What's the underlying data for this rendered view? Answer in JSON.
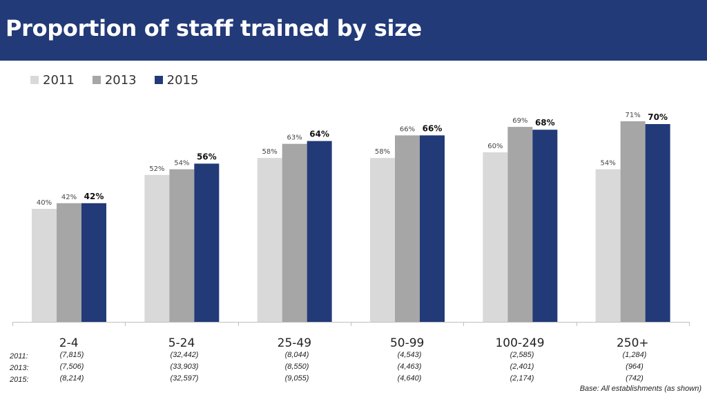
{
  "header": {
    "title": "Proportion of staff trained by size"
  },
  "colors": {
    "header_bg": "#223a78",
    "s2011": "#d9d9d9",
    "s2013": "#a6a6a6",
    "s2015": "#223a78"
  },
  "footnote": "Base: All establishments  (as shown)",
  "chart_data": {
    "type": "bar",
    "title": "Proportion of staff trained by size",
    "ylim": [
      0,
      100
    ],
    "grid": false,
    "legend_position": "top-left",
    "categories": [
      "2-4",
      "5-24",
      "25-49",
      "50-99",
      "100-249",
      "250+"
    ],
    "series": [
      {
        "name": "2011",
        "values": [
          40,
          52,
          58,
          58,
          60,
          54
        ],
        "labels": [
          "40%",
          "52%",
          "58%",
          "58%",
          "60%",
          "54%"
        ],
        "color": "#d9d9d9"
      },
      {
        "name": "2013",
        "values": [
          42,
          54,
          63,
          66,
          69,
          71
        ],
        "labels": [
          "42%",
          "54%",
          "63%",
          "66%",
          "69%",
          "71%"
        ],
        "color": "#a6a6a6"
      },
      {
        "name": "2015",
        "values": [
          42,
          56,
          64,
          66,
          68,
          70
        ],
        "labels": [
          "42%",
          "56%",
          "64%",
          "66%",
          "68%",
          "70%"
        ],
        "color": "#223a78"
      }
    ],
    "base_sizes": {
      "row_labels": [
        "2011:",
        "2013:",
        "2015:"
      ],
      "values": [
        [
          "(7,815)",
          "(32,442)",
          "(8,044)",
          "(4,543)",
          "(2,585)",
          "(1,284)"
        ],
        [
          "(7,506)",
          "(33,903)",
          "(8,550)",
          "(4,463)",
          "(2,401)",
          "(964)"
        ],
        [
          "(8,214)",
          "(32,597)",
          "(9,055)",
          "(4,640)",
          "(2,174)",
          "(742)"
        ]
      ]
    }
  }
}
